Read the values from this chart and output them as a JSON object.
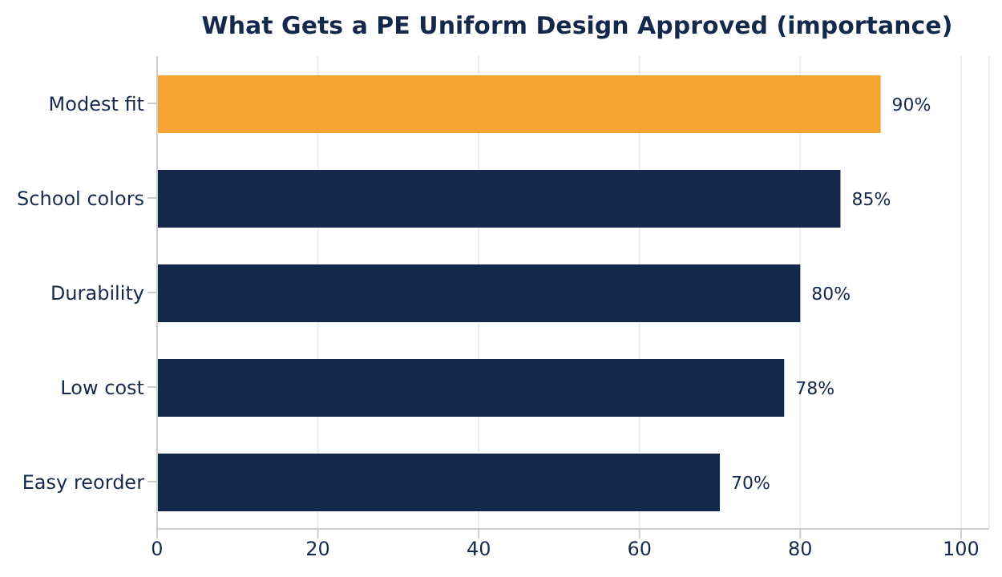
{
  "chart_data": {
    "type": "bar",
    "orientation": "horizontal",
    "title": "What Gets a PE Uniform Design Approved (importance)",
    "categories": [
      "Modest fit",
      "School colors",
      "Durability",
      "Low cost",
      "Easy reorder"
    ],
    "values": [
      90,
      85,
      80,
      78,
      70
    ],
    "colors": [
      "#f5a431",
      "#14284b",
      "#14284b",
      "#14284b",
      "#14284b"
    ],
    "value_labels": [
      "90%",
      "85%",
      "80%",
      "78%",
      "70%"
    ],
    "xlim": [
      0,
      103.5
    ],
    "xticks": [
      0,
      20,
      40,
      60,
      80,
      100
    ],
    "grid": "x"
  }
}
